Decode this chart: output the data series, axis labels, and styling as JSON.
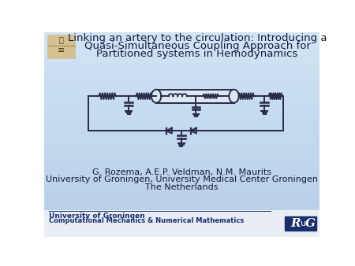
{
  "title_line1": "Linking an artery to the circulation: Introducing a",
  "title_line2": "Quasi-Simultaneous Coupling Approach for",
  "title_line3": "Partitioned systems in Hemodynamics",
  "author_line1": "G. Rozema, A.E.P. Veldman, N.M. Maurits",
  "author_line2": "University of Groningen, University Medical Center Groningen",
  "author_line3": "The Netherlands",
  "footer_line1": "University of Groningen",
  "footer_line2": "Computational Mechanics & Numerical Mathematics",
  "bg_color_top": "#b8d0e8",
  "bg_color_bottom": "#c8dcf0",
  "footer_bg": "#e8eef4",
  "rug_bg": "#1a2e6e",
  "dark_blue": "#1a2e6e",
  "circuit_color": "#2a2a4a",
  "title_fontsize": 9.5,
  "author_fontsize": 8.0,
  "footer_fontsize": 6.5,
  "figw": 4.5,
  "figh": 3.38,
  "dpi": 100
}
